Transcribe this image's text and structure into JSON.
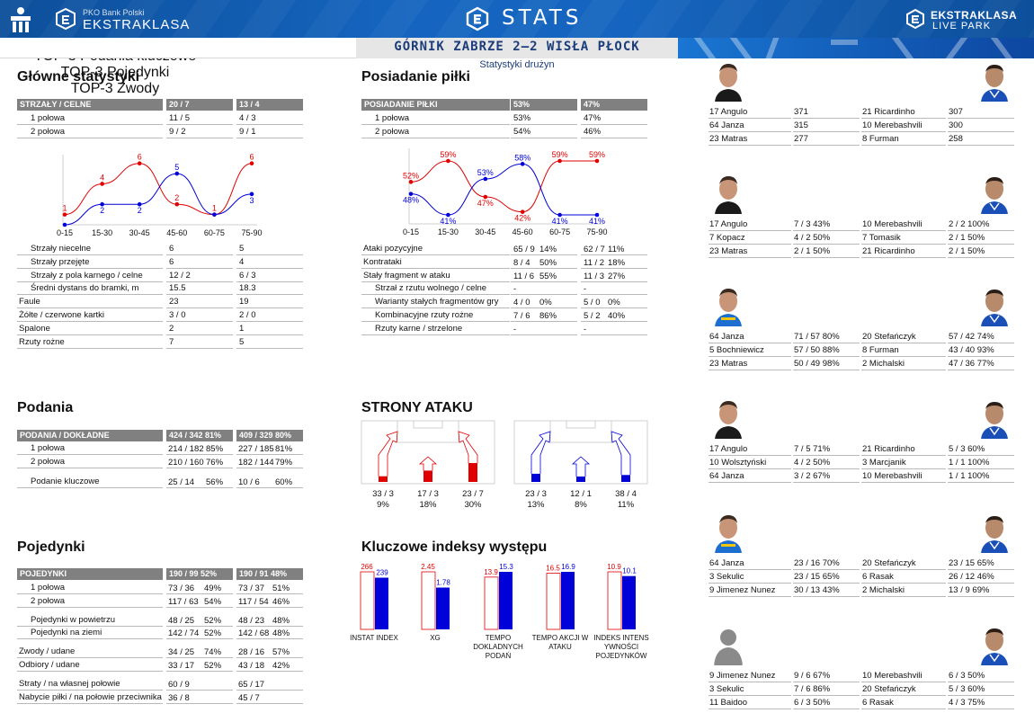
{
  "header": {
    "left_logo_sub": "PKO Bank Polski",
    "left_logo_text": "EKSTRAKLASA",
    "center": "STATS",
    "right_logo_text": "EKSTRAKLASA",
    "right_logo_sub": "LIVE PARK"
  },
  "match": {
    "title": "GÓRNIK ZABRZE 2–2 WISŁA PŁOCK",
    "subtitle": "Statystyki drużyn"
  },
  "colors": {
    "home": "#e00000",
    "away": "#0000d8",
    "header_bar": "#808080",
    "brand": "#1565c0"
  },
  "glowne": {
    "title": "Główne statystyki",
    "head": [
      "STRZAŁY / CELNE",
      "20 / 7",
      "13 / 4"
    ],
    "halves": [
      [
        "1 połowa",
        "11 / 5",
        "4 / 3"
      ],
      [
        "2 połowa",
        "9 / 2",
        "9 / 1"
      ]
    ],
    "rows": [
      [
        "Strzały niecelne",
        "6",
        "5",
        1
      ],
      [
        "Strzały przejęte",
        "6",
        "4",
        1
      ],
      [
        "Strzały z pola karnego / celne",
        "12 / 2",
        "6 / 3",
        1
      ],
      [
        "Średni dystans do bramki, m",
        "15.5",
        "18.3",
        1
      ],
      [
        "Faule",
        "23",
        "19",
        0
      ],
      [
        "Żółte / czerwone kartki",
        "3 / 0",
        "2 / 0",
        0
      ],
      [
        "Spalone",
        "2",
        "1",
        0
      ],
      [
        "Rzuty rożne",
        "7",
        "5",
        0
      ]
    ]
  },
  "chart_shots": {
    "type": "line",
    "categories": [
      "0-15",
      "15-30",
      "30-45",
      "45-60",
      "60-75",
      "75-90"
    ],
    "series": [
      {
        "values": [
          1,
          4,
          6,
          2,
          1,
          6
        ]
      },
      {
        "values": [
          0,
          2,
          2,
          5,
          1,
          3
        ]
      }
    ],
    "labels": [
      [
        "1",
        "4",
        "6",
        "2",
        "1",
        "6"
      ],
      [
        "",
        "2",
        "2",
        "5",
        "",
        "3"
      ]
    ],
    "ylim": [
      0,
      6.5
    ]
  },
  "posiadanie": {
    "title": "Posiadanie piłki",
    "head": [
      "POSIADANIE PIŁKI",
      "53%",
      "47%"
    ],
    "halves": [
      [
        "1 połowa",
        "53%",
        "47%"
      ],
      [
        "2 połowa",
        "54%",
        "46%"
      ]
    ],
    "rows": [
      [
        "Ataki pozycyjne",
        "65 / 9",
        "14%",
        "62 / 7",
        "11%",
        0
      ],
      [
        "Kontrataki",
        "8 / 4",
        "50%",
        "11 / 2",
        "18%",
        0
      ],
      [
        "Stały fragment w ataku",
        "11 / 6",
        "55%",
        "11 / 3",
        "27%",
        0
      ],
      [
        "Strzał z rzutu wolnego / celne",
        "-",
        "",
        "-",
        "",
        1
      ],
      [
        "Warianty stałych fragmentów gry",
        "4 / 0",
        "0%",
        "5 / 0",
        "0%",
        1
      ],
      [
        "Kombinacyjne rzuty rożne",
        "7 / 6",
        "86%",
        "5 / 2",
        "40%",
        1
      ],
      [
        "Rzuty karne /  strzelone",
        "-",
        "",
        "-",
        "",
        1
      ]
    ]
  },
  "chart_possession": {
    "type": "line",
    "categories": [
      "0-15",
      "15-30",
      "30-45",
      "45-60",
      "60-75",
      "75-90"
    ],
    "series": [
      {
        "values": [
          52,
          59,
          47,
          42,
          59,
          59
        ]
      },
      {
        "values": [
          48,
          41,
          53,
          58,
          41,
          41
        ]
      }
    ],
    "labels": [
      [
        "52%",
        "59%",
        "47%",
        "42%",
        "59%",
        "59%"
      ],
      [
        "48%",
        "41%",
        "53%",
        "58%",
        "41%",
        "41%"
      ]
    ],
    "ylim": [
      38,
      62
    ]
  },
  "podania": {
    "title": "Podania",
    "head": [
      "PODANIA / DOKŁADNE",
      "424 / 342 81%",
      "409 / 329 80%"
    ],
    "rows": [
      [
        "1 połowa",
        "214 / 182",
        "85%",
        "227 / 185",
        "81%"
      ],
      [
        "2 połowa",
        "210 / 160",
        "76%",
        "182 / 144",
        "79%"
      ]
    ],
    "key": [
      "Podanie kluczowe",
      "25 / 14",
      "56%",
      "10 / 6",
      "60%"
    ]
  },
  "strony": {
    "title": "STRONY ATAKU",
    "home": [
      {
        "v": "33 / 3",
        "p": "9%",
        "pct": 9
      },
      {
        "v": "17 / 3",
        "p": "18%",
        "pct": 18
      },
      {
        "v": "23 / 7",
        "p": "30%",
        "pct": 30
      }
    ],
    "away": [
      {
        "v": "23 / 3",
        "p": "13%",
        "pct": 13
      },
      {
        "v": "12 / 1",
        "p": "8%",
        "pct": 8
      },
      {
        "v": "38 / 4",
        "p": "11%",
        "pct": 11
      }
    ]
  },
  "pojedynki": {
    "title": "Pojedynki",
    "head": [
      "POJEDYNKI",
      "190 / 99 52%",
      "190 / 91 48%"
    ],
    "rows": [
      [
        "1 połowa",
        "73 / 36",
        "49%",
        "73 / 37",
        "51%",
        0
      ],
      [
        "2 połowa",
        "117 / 63",
        "54%",
        "117 / 54",
        "46%",
        0
      ],
      [
        "Pojedynki w powietrzu",
        "48 / 25",
        "52%",
        "48 / 23",
        "48%",
        1
      ],
      [
        "Pojedynki na ziemi",
        "142 / 74",
        "52%",
        "142 / 68",
        "48%",
        0
      ],
      [
        "Zwody / udane",
        "34 / 25",
        "74%",
        "28 / 16",
        "57%",
        1
      ],
      [
        "Odbiory / udane",
        "33 / 17",
        "52%",
        "43 / 18",
        "42%",
        0
      ],
      [
        "Straty / na własnej połowie",
        "60 / 9",
        "",
        "65 / 17",
        "",
        1
      ],
      [
        "Nabycie piłki / na połowie przeciwnika",
        "36 / 8",
        "",
        "45 / 7",
        "",
        0
      ]
    ]
  },
  "indeksy": {
    "title": "Kluczowe indeksy występu",
    "chart_data": {
      "type": "bar",
      "categories": [
        "INSTAT INDEX",
        "XG",
        "TEMPO DOKLADNYCH PODAŃ",
        "TEMPO AKCJI W ATAKU",
        "INDEKS INTENS YWNOŚCI POJEDYNKÓW"
      ],
      "series": [
        {
          "values": [
            266,
            2.45,
            13.9,
            16.5,
            10.9
          ]
        },
        {
          "values": [
            239,
            1.78,
            15.3,
            16.9,
            10.1
          ]
        }
      ]
    },
    "labels_home": [
      "266",
      "2.45",
      "13.9",
      "16.5",
      "10.9"
    ],
    "labels_away": [
      "239",
      "1.78",
      "15.3",
      "16.9",
      "10.1"
    ],
    "cat_lines": [
      [
        "INSTAT INDEX"
      ],
      [
        "XG"
      ],
      [
        "TEMPO",
        "DOKLADNYCH",
        "PODAŃ"
      ],
      [
        "TEMPO AKCJI W",
        "ATAKU"
      ],
      [
        "INDEKS INTENS",
        "YWNOŚCI",
        "POJEDYNKÓW"
      ]
    ]
  },
  "top": [
    {
      "title": "TOP-3 InStat Index",
      "rows": [
        [
          "17 Angulo",
          "371",
          "21 Ricardinho",
          "307"
        ],
        [
          "64 Janza",
          "315",
          "10 Merebashvili",
          "300"
        ],
        [
          "23 Matras",
          "277",
          "8  Furman",
          "258"
        ]
      ]
    },
    {
      "title": "TOP-3 Strzały / celne",
      "rows": [
        [
          "17 Angulo",
          "7 / 3  43%",
          "10 Merebashvili",
          "2 / 2  100%"
        ],
        [
          "7  Kopacz",
          "4 / 2  50%",
          "7  Tomasik",
          "2 / 1  50%"
        ],
        [
          "23 Matras",
          "2 / 1  50%",
          "21 Ricardinho",
          "2 / 1  50%"
        ]
      ]
    },
    {
      "title": "TOP-3 Podania",
      "rows": [
        [
          "64 Janza",
          "71 / 57 80%",
          "20 Stefańczyk",
          "57 / 42 74%"
        ],
        [
          "5  Bochniewicz",
          "57 / 50 88%",
          "8  Furman",
          "43 / 40 93%"
        ],
        [
          "23 Matras",
          "50 / 49 98%",
          "2  Michalski",
          "47 / 36 77%"
        ]
      ]
    },
    {
      "title": "TOP-3 Podania kluczowe",
      "rows": [
        [
          "17 Angulo",
          "7 / 5  71%",
          "21 Ricardinho",
          "5 / 3  60%"
        ],
        [
          "10 Wolsztyński",
          "4 / 2  50%",
          "3  Marcjanik",
          "1 / 1  100%"
        ],
        [
          "64 Janza",
          "3 / 2  67%",
          "10 Merebashvili",
          "1 / 1  100%"
        ]
      ]
    },
    {
      "title": "TOP-3 Pojedynki",
      "rows": [
        [
          "64 Janza",
          "23 / 16 70%",
          "20 Stefańczyk",
          "23 / 15 65%"
        ],
        [
          "3  Sekulic",
          "23 / 15 65%",
          "6  Rasak",
          "26 / 12 46%"
        ],
        [
          "9  Jimenez Nunez",
          "30 / 13 43%",
          "2  Michalski",
          "13 / 9   69%"
        ]
      ]
    },
    {
      "title": "TOP-3 Zwody",
      "rows": [
        [
          "9  Jimenez Nunez",
          "9 / 6  67%",
          "10 Merebashvili",
          "6 / 3  50%"
        ],
        [
          "3  Sekulic",
          "7 / 6  86%",
          "20 Stefańczyk",
          "5 / 3  60%"
        ],
        [
          "11 Baidoo",
          "6 / 3  50%",
          "6  Rasak",
          "4 / 3  75%"
        ]
      ]
    }
  ]
}
